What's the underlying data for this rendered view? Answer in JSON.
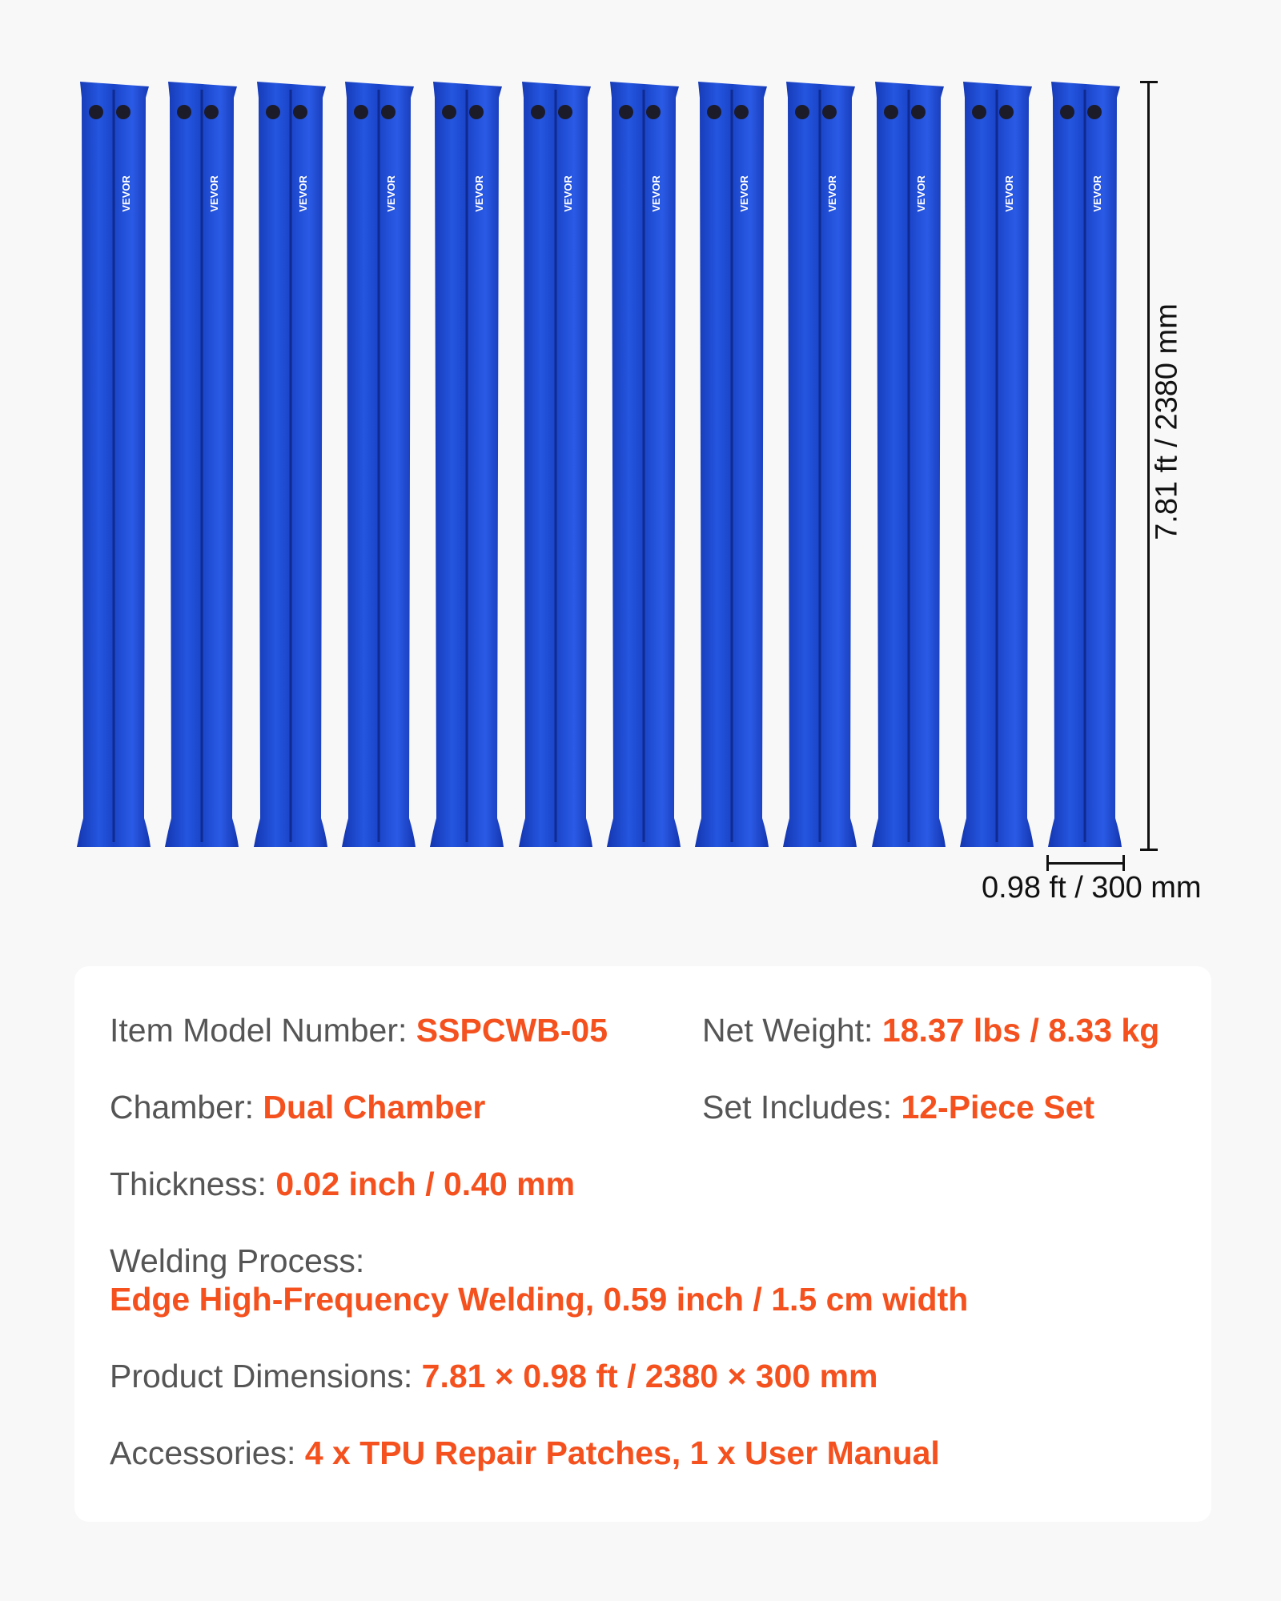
{
  "product": {
    "brand": "VEVOR",
    "tube_count": 12,
    "tube_color": "#1a44c8",
    "height_label": "7.81 ft / 2380 mm",
    "width_label": "0.98 ft / 300 mm"
  },
  "specs": {
    "accent_color": "#f4511e",
    "model": {
      "label": "Item Model Number: ",
      "value": "SSPCWB-05"
    },
    "weight": {
      "label": "Net Weight: ",
      "value": "18.37 lbs / 8.33 kg"
    },
    "chamber": {
      "label": "Chamber: ",
      "value": "Dual Chamber"
    },
    "set": {
      "label": "Set Includes: ",
      "value": "12-Piece Set"
    },
    "thickness": {
      "label": "Thickness: ",
      "value": "0.02 inch / 0.40 mm"
    },
    "welding": {
      "label": "Welding Process:",
      "value": "Edge High-Frequency Welding, 0.59 inch / 1.5 cm width"
    },
    "dimensions": {
      "label": "Product Dimensions: ",
      "value": "7.81 × 0.98 ft / 2380 × 300 mm"
    },
    "accessories": {
      "label": "Accessories: ",
      "value": "4 x TPU Repair Patches, 1 x User Manual"
    }
  }
}
